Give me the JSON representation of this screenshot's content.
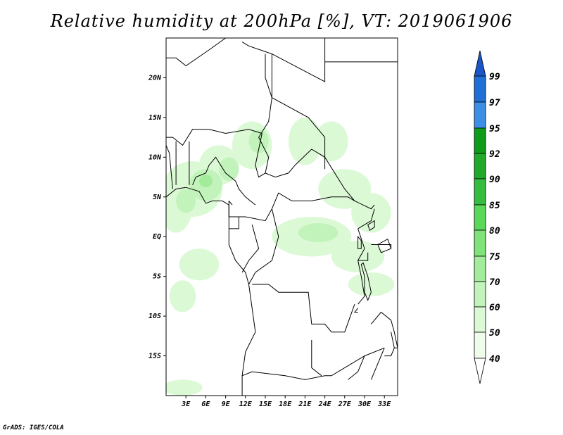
{
  "title": "Relative humidity at 200hPa [%], VT: 2019061906",
  "credit": "GrADS: IGES/COLA",
  "map": {
    "extent": {
      "lon": [
        0,
        35
      ],
      "lat": [
        -20,
        25
      ]
    },
    "lat_ticks": [
      {
        "value": 20,
        "label": "20N"
      },
      {
        "value": 15,
        "label": "15N"
      },
      {
        "value": 10,
        "label": "10N"
      },
      {
        "value": 5,
        "label": "5N"
      },
      {
        "value": 0,
        "label": "EQ"
      },
      {
        "value": -5,
        "label": "5S"
      },
      {
        "value": -10,
        "label": "10S"
      },
      {
        "value": -15,
        "label": "15S"
      }
    ],
    "lon_ticks": [
      {
        "value": 3,
        "label": "3E"
      },
      {
        "value": 6,
        "label": "6E"
      },
      {
        "value": 9,
        "label": "9E"
      },
      {
        "value": 12,
        "label": "12E"
      },
      {
        "value": 15,
        "label": "15E"
      },
      {
        "value": 18,
        "label": "18E"
      },
      {
        "value": 21,
        "label": "21E"
      },
      {
        "value": 24,
        "label": "24E"
      },
      {
        "value": 27,
        "label": "27E"
      },
      {
        "value": 30,
        "label": "30E"
      },
      {
        "value": 33,
        "label": "33E"
      }
    ]
  },
  "legend": {
    "bands": [
      {
        "from": 95,
        "to": 97,
        "color": "#3d8fe6"
      },
      {
        "from": 92,
        "to": 95,
        "color": "#0f9c1b"
      },
      {
        "from": 90,
        "to": 92,
        "color": "#22a92a"
      },
      {
        "from": 85,
        "to": 90,
        "color": "#34bd3f"
      },
      {
        "from": 80,
        "to": 85,
        "color": "#5ad85a"
      },
      {
        "from": 75,
        "to": 80,
        "color": "#7fe37a"
      },
      {
        "from": 70,
        "to": 75,
        "color": "#a3ec9c"
      },
      {
        "from": 60,
        "to": 70,
        "color": "#c2f3bb"
      },
      {
        "from": 50,
        "to": 60,
        "color": "#dcf9d6"
      },
      {
        "from": 40,
        "to": 50,
        "color": "#effbeb"
      }
    ],
    "top_band": {
      "from": 97,
      "to": 99,
      "color": "#1f6fd6"
    },
    "top_arrow_color": "#1a56c8",
    "bottom_arrow_color": "#ffffff",
    "labels": [
      "99",
      "97",
      "95",
      "92",
      "90",
      "85",
      "80",
      "75",
      "70",
      "60",
      "50",
      "40"
    ]
  },
  "humidity_field": {
    "level_colors": {
      "50": "#dcf9d6",
      "60": "#c2f3bb",
      "70": "#a3ec9c"
    },
    "areas": [
      {
        "level": 50,
        "lon": 4,
        "lat": 6,
        "rlon": 4.5,
        "rlat": 3.5
      },
      {
        "level": 50,
        "lon": 1.5,
        "lat": 4,
        "rlon": 2.5,
        "rlat": 3.5
      },
      {
        "level": 50,
        "lon": 8,
        "lat": 9,
        "rlon": 3,
        "rlat": 2.5
      },
      {
        "level": 50,
        "lon": 13,
        "lat": 11.5,
        "rlon": 3,
        "rlat": 3
      },
      {
        "level": 50,
        "lon": 21,
        "lat": 12,
        "rlon": 2.5,
        "rlat": 3
      },
      {
        "level": 50,
        "lon": 25,
        "lat": 12,
        "rlon": 2.5,
        "rlat": 2.5
      },
      {
        "level": 50,
        "lon": 27,
        "lat": 6,
        "rlon": 4,
        "rlat": 2.5
      },
      {
        "level": 50,
        "lon": 31,
        "lat": 3,
        "rlon": 3,
        "rlat": 2.5
      },
      {
        "level": 50,
        "lon": 22,
        "lat": 0,
        "rlon": 6,
        "rlat": 2.5
      },
      {
        "level": 50,
        "lon": 29,
        "lat": -2.5,
        "rlon": 4,
        "rlat": 2
      },
      {
        "level": 50,
        "lon": 31,
        "lat": -6,
        "rlon": 3.5,
        "rlat": 1.5
      },
      {
        "level": 50,
        "lon": 5,
        "lat": -3.5,
        "rlon": 3,
        "rlat": 2
      },
      {
        "level": 50,
        "lon": 2.5,
        "lat": -7.5,
        "rlon": 2,
        "rlat": 2
      },
      {
        "level": 50,
        "lon": 2.5,
        "lat": -19,
        "rlon": 3,
        "rlat": 1
      },
      {
        "level": 60,
        "lon": 6,
        "lat": 6.5,
        "rlon": 2.5,
        "rlat": 2
      },
      {
        "level": 60,
        "lon": 3,
        "lat": 4.5,
        "rlon": 1.5,
        "rlat": 1.5
      },
      {
        "level": 60,
        "lon": 9.5,
        "lat": 8.5,
        "rlon": 1.5,
        "rlat": 1.5
      },
      {
        "level": 60,
        "lon": 23,
        "lat": 0.5,
        "rlon": 3,
        "rlat": 1.2
      },
      {
        "level": 60,
        "lon": 14,
        "lat": 12,
        "rlon": 1.5,
        "rlat": 1.5
      },
      {
        "level": 70,
        "lon": 6,
        "lat": 7,
        "rlon": 1,
        "rlat": 0.8
      }
    ]
  },
  "boundaries": [
    [
      [
        0,
        22.5
      ],
      [
        1.5,
        22.5
      ],
      [
        3,
        21.5
      ],
      [
        6.5,
        23.5
      ],
      [
        9,
        25
      ]
    ],
    [
      [
        11.5,
        24.5
      ],
      [
        12.5,
        24
      ],
      [
        16,
        23
      ],
      [
        24,
        19.5
      ],
      [
        24,
        25
      ]
    ],
    [
      [
        24,
        22
      ],
      [
        35,
        22
      ]
    ],
    [
      [
        0,
        12.5
      ],
      [
        1,
        12.5
      ],
      [
        2.5,
        11.5
      ],
      [
        4,
        13.5
      ],
      [
        6.5,
        13.5
      ],
      [
        9,
        13
      ],
      [
        12.5,
        13.5
      ],
      [
        14.5,
        13
      ]
    ],
    [
      [
        15,
        23
      ],
      [
        15,
        20
      ],
      [
        16,
        17.5
      ],
      [
        15.5,
        14.5
      ],
      [
        14,
        12.5
      ],
      [
        15.5,
        10
      ],
      [
        15,
        8
      ]
    ],
    [
      [
        16,
        23
      ],
      [
        16,
        17.5
      ],
      [
        21.5,
        15
      ],
      [
        24,
        12.5
      ],
      [
        24,
        8.5
      ]
    ],
    [
      [
        14.5,
        13
      ],
      [
        13.5,
        9
      ],
      [
        14,
        7.5
      ],
      [
        15,
        8
      ]
    ],
    [
      [
        1.5,
        6.5
      ],
      [
        1.5,
        12
      ]
    ],
    [
      [
        3.5,
        6.5
      ],
      [
        3.5,
        12
      ]
    ],
    [
      [
        0,
        11.5
      ],
      [
        0.5,
        10.5
      ],
      [
        1,
        6
      ]
    ],
    [
      [
        4,
        6.5
      ],
      [
        4.5,
        7.5
      ],
      [
        6,
        8
      ],
      [
        6.5,
        9
      ],
      [
        7.5,
        10
      ],
      [
        9,
        8
      ],
      [
        10.5,
        7
      ],
      [
        11,
        6
      ],
      [
        12,
        5
      ],
      [
        13.5,
        4
      ]
    ],
    [
      [
        9.5,
        4.5
      ],
      [
        9.5,
        2.5
      ],
      [
        12,
        2.5
      ],
      [
        15,
        2
      ],
      [
        16,
        3.5
      ],
      [
        17,
        5.5
      ],
      [
        19,
        4.5
      ],
      [
        22,
        4.5
      ],
      [
        25,
        5
      ],
      [
        27.5,
        5
      ],
      [
        28.5,
        4.5
      ],
      [
        31,
        3.5
      ],
      [
        31.5,
        4
      ]
    ],
    [
      [
        15,
        8
      ],
      [
        16.5,
        7.5
      ],
      [
        18.5,
        8
      ],
      [
        19.5,
        9
      ],
      [
        22,
        11
      ],
      [
        24,
        10
      ],
      [
        27,
        6
      ],
      [
        28.5,
        4.5
      ]
    ],
    [
      [
        11,
        2.5
      ],
      [
        11,
        1
      ],
      [
        9.5,
        1
      ]
    ],
    [
      [
        13,
        1.5
      ],
      [
        14,
        -1.5
      ],
      [
        12.5,
        -3
      ],
      [
        11.5,
        -4.5
      ]
    ],
    [
      [
        16,
        3.5
      ],
      [
        17,
        0
      ],
      [
        16,
        -3
      ],
      [
        13.5,
        -4.5
      ],
      [
        12.5,
        -6
      ]
    ],
    [
      [
        13,
        -6
      ],
      [
        15.5,
        -6
      ],
      [
        17,
        -7
      ],
      [
        20,
        -7
      ],
      [
        21.5,
        -7
      ],
      [
        22,
        -11
      ],
      [
        24,
        -11
      ],
      [
        25,
        -12
      ],
      [
        27,
        -12
      ],
      [
        28.5,
        -8.5
      ]
    ],
    [
      [
        29,
        1
      ],
      [
        30,
        -1.5
      ],
      [
        29,
        -3
      ],
      [
        29.5,
        -5
      ],
      [
        30,
        -7.5
      ],
      [
        29,
        -8.5
      ]
    ],
    [
      [
        29,
        1
      ],
      [
        31,
        2
      ],
      [
        31.5,
        3.5
      ]
    ],
    [
      [
        31,
        -1
      ],
      [
        34,
        -1
      ],
      [
        34,
        -1.5
      ]
    ],
    [
      [
        29,
        -3
      ],
      [
        30.5,
        -3
      ],
      [
        30.5,
        -2
      ]
    ],
    [
      [
        31,
        -11
      ],
      [
        32.5,
        -9.5
      ],
      [
        34,
        -10.5
      ],
      [
        34.5,
        -12
      ],
      [
        35,
        -14
      ]
    ],
    [
      [
        11.5,
        -17.5
      ],
      [
        13,
        -17
      ],
      [
        18,
        -17.5
      ],
      [
        21,
        -18
      ],
      [
        24,
        -17.5
      ]
    ],
    [
      [
        22,
        -13
      ],
      [
        22,
        -16.5
      ],
      [
        23.5,
        -17.5
      ]
    ],
    [
      [
        24,
        -17.5
      ],
      [
        25,
        -17.5
      ],
      [
        28,
        -16
      ],
      [
        30,
        -15
      ],
      [
        33,
        -14
      ]
    ],
    [
      [
        30,
        -15
      ],
      [
        29,
        -17
      ],
      [
        27.5,
        -18
      ]
    ],
    [
      [
        31,
        -18
      ],
      [
        32,
        -16
      ],
      [
        33,
        -14
      ]
    ]
  ],
  "coastline": [
    [
      0,
      5
    ],
    [
      1.5,
      6
    ],
    [
      3,
      6.2
    ],
    [
      5,
      5.7
    ],
    [
      6,
      4.2
    ],
    [
      7,
      4.5
    ],
    [
      8.5,
      4.5
    ],
    [
      9.5,
      4
    ],
    [
      9.5,
      1
    ],
    [
      9.5,
      -1
    ],
    [
      10.5,
      -3
    ],
    [
      12,
      -4.5
    ],
    [
      12.5,
      -6
    ],
    [
      13,
      -9
    ],
    [
      13.5,
      -12
    ],
    [
      12,
      -14.5
    ],
    [
      11.5,
      -17.5
    ],
    [
      11.5,
      -20
    ]
  ],
  "lakes": [
    [
      [
        29,
        0
      ],
      [
        29.5,
        -0.5
      ],
      [
        29.5,
        -1.5
      ],
      [
        29,
        -1.5
      ]
    ],
    [
      [
        30.5,
        1.5
      ],
      [
        31.5,
        2
      ],
      [
        31.5,
        1.2
      ],
      [
        30.8,
        0.8
      ]
    ],
    [
      [
        29.5,
        -3.5
      ],
      [
        30,
        -5
      ],
      [
        30,
        -7
      ],
      [
        30.5,
        -8
      ],
      [
        31,
        -7
      ],
      [
        30.5,
        -5
      ],
      [
        29.8,
        -3.3
      ]
    ],
    [
      [
        32,
        -1
      ],
      [
        33.5,
        -0.3
      ],
      [
        34,
        -1.5
      ],
      [
        32.5,
        -2
      ]
    ],
    [
      [
        29,
        -9
      ],
      [
        28.5,
        -9.5
      ],
      [
        29,
        -9.5
      ]
    ],
    [
      [
        33,
        -15
      ],
      [
        34,
        -15
      ],
      [
        34.5,
        -14
      ]
    ],
    [
      [
        34,
        -12
      ],
      [
        34.5,
        -14
      ],
      [
        35,
        -14
      ]
    ],
    [
      [
        9.5,
        4.5
      ],
      [
        10,
        4
      ]
    ]
  ]
}
